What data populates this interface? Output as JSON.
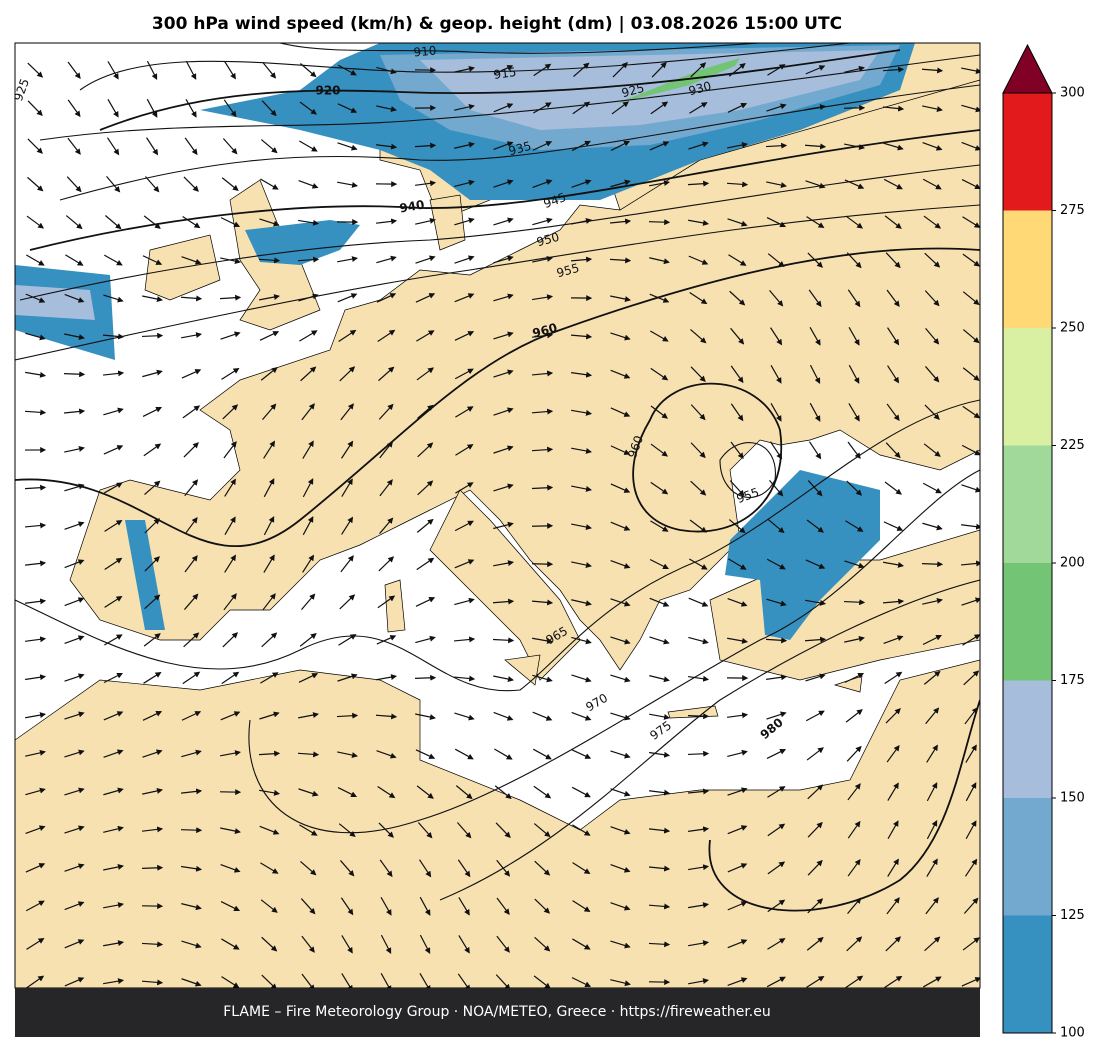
{
  "title": "300 hPa wind speed (km/h) & geop. height (dm)  |  03.08.2026 15:00 UTC",
  "footer": "FLAME – Fire Meteorology Group · NOA/METEO, Greece · https://fireweather.eu",
  "contour_labels": [
    "925",
    "910",
    "915",
    "920",
    "925",
    "930",
    "935",
    "940",
    "945",
    "950",
    "955",
    "960",
    "960",
    "955",
    "965",
    "970",
    "975",
    "980"
  ],
  "colorbar": {
    "ticks": [
      100,
      125,
      150,
      175,
      200,
      225,
      250,
      275,
      300
    ],
    "colors": [
      "#3690c0",
      "#74a9cf",
      "#a6bddb",
      "#74c476",
      "#a1d99b",
      "#d9f0a3",
      "#fed976",
      "#e31a1c"
    ],
    "over_color": "#800026"
  }
}
